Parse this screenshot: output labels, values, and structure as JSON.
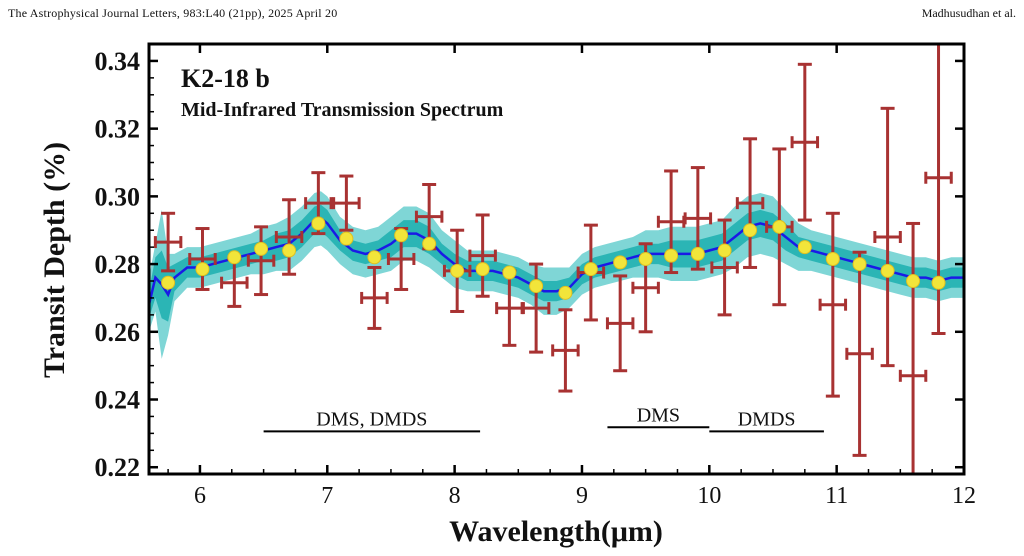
{
  "header": {
    "journal": "The Astrophysical Journal Letters, 983:L40 (21pp), 2025 April 20",
    "authors": "Madhusudhan et al."
  },
  "colors": {
    "model_line": "#1a1ae6",
    "band_outer": "#7fd6d6",
    "band_inner": "#2bb5b5",
    "data_points": "#a83232",
    "binned_points": "#f2e53a"
  },
  "chart_data": {
    "type": "scatter",
    "title": "K2-18 b",
    "subtitle": "Mid-Infrared Transmission Spectrum",
    "xlabel": "Wavelength(μm)",
    "ylabel": "Transit Depth (%)",
    "xlim": [
      5.6,
      12.0
    ],
    "ylim": [
      0.218,
      0.345
    ],
    "xticks": [
      "6",
      "7",
      "8",
      "9",
      "10",
      "11",
      "12"
    ],
    "yticks": [
      "0.22",
      "0.24",
      "0.26",
      "0.28",
      "0.30",
      "0.32",
      "0.34"
    ],
    "grid": false,
    "annotations": [
      {
        "label": "DMS, DMDS",
        "x_start": 6.5,
        "x_end": 8.2,
        "y": 0.2306
      },
      {
        "label": "DMS",
        "x_start": 9.2,
        "x_end": 10.0,
        "y": 0.2318
      },
      {
        "label": "DMDS",
        "x_start": 10.0,
        "x_end": 10.9,
        "y": 0.2306
      }
    ],
    "series": [
      {
        "type": "errorbar",
        "x": [
          5.75,
          6.02,
          6.27,
          6.48,
          6.7,
          6.93,
          7.15,
          7.37,
          7.58,
          7.8,
          8.02,
          8.22,
          8.43,
          8.64,
          8.87,
          9.07,
          9.3,
          9.5,
          9.7,
          9.91,
          10.12,
          10.32,
          10.55,
          10.75,
          10.97,
          11.18,
          11.4,
          11.6,
          11.8
        ],
        "y": [
          0.2865,
          0.2815,
          0.2745,
          0.281,
          0.288,
          0.298,
          0.298,
          0.27,
          0.2815,
          0.294,
          0.278,
          0.2825,
          0.267,
          0.267,
          0.2545,
          0.2775,
          0.2625,
          0.273,
          0.2925,
          0.2935,
          0.279,
          0.298,
          0.291,
          0.316,
          0.268,
          0.2535,
          0.288,
          0.247,
          0.3055
        ],
        "yerr": [
          0.0085,
          0.009,
          0.007,
          0.01,
          0.011,
          0.009,
          0.008,
          0.009,
          0.009,
          0.0095,
          0.012,
          0.012,
          0.011,
          0.013,
          0.012,
          0.014,
          0.014,
          0.013,
          0.015,
          0.015,
          0.014,
          0.019,
          0.023,
          0.023,
          0.027,
          0.03,
          0.038,
          0.045,
          0.046
        ],
        "xerr": [
          0.1,
          0.1,
          0.1,
          0.1,
          0.1,
          0.1,
          0.1,
          0.1,
          0.1,
          0.1,
          0.1,
          0.1,
          0.1,
          0.1,
          0.1,
          0.1,
          0.1,
          0.1,
          0.1,
          0.1,
          0.1,
          0.1,
          0.1,
          0.1,
          0.1,
          0.1,
          0.1,
          0.1,
          0.1
        ]
      },
      {
        "type": "binned",
        "x": [
          5.75,
          6.02,
          6.27,
          6.48,
          6.7,
          6.93,
          7.15,
          7.37,
          7.58,
          7.8,
          8.02,
          8.22,
          8.43,
          8.64,
          8.87,
          9.07,
          9.3,
          9.5,
          9.7,
          9.91,
          10.12,
          10.32,
          10.55,
          10.75,
          10.97,
          11.18,
          11.4,
          11.6,
          11.8
        ],
        "y": [
          0.2745,
          0.2785,
          0.282,
          0.2845,
          0.284,
          0.292,
          0.2875,
          0.282,
          0.2885,
          0.286,
          0.278,
          0.2785,
          0.2775,
          0.2735,
          0.2715,
          0.2785,
          0.2805,
          0.2815,
          0.2825,
          0.283,
          0.284,
          0.29,
          0.291,
          0.285,
          0.2815,
          0.28,
          0.278,
          0.275,
          0.2745
        ]
      },
      {
        "type": "model",
        "x": [
          5.6,
          5.65,
          5.7,
          5.75,
          5.8,
          5.9,
          6.0,
          6.1,
          6.2,
          6.3,
          6.4,
          6.5,
          6.6,
          6.7,
          6.8,
          6.9,
          6.95,
          7.0,
          7.1,
          7.2,
          7.3,
          7.4,
          7.5,
          7.6,
          7.7,
          7.8,
          7.9,
          8.0,
          8.1,
          8.2,
          8.3,
          8.4,
          8.5,
          8.6,
          8.7,
          8.8,
          8.9,
          9.0,
          9.1,
          9.2,
          9.3,
          9.4,
          9.5,
          9.6,
          9.7,
          9.8,
          9.9,
          10.0,
          10.1,
          10.2,
          10.3,
          10.4,
          10.5,
          10.6,
          10.7,
          10.8,
          10.9,
          11.0,
          11.1,
          11.2,
          11.3,
          11.4,
          11.5,
          11.6,
          11.7,
          11.8,
          11.9,
          12.0
        ],
        "y": [
          0.268,
          0.276,
          0.274,
          0.271,
          0.276,
          0.279,
          0.279,
          0.28,
          0.281,
          0.282,
          0.283,
          0.284,
          0.285,
          0.286,
          0.289,
          0.293,
          0.2935,
          0.292,
          0.287,
          0.284,
          0.283,
          0.284,
          0.286,
          0.289,
          0.289,
          0.287,
          0.283,
          0.28,
          0.278,
          0.278,
          0.278,
          0.277,
          0.276,
          0.274,
          0.272,
          0.272,
          0.273,
          0.277,
          0.279,
          0.28,
          0.281,
          0.282,
          0.283,
          0.283,
          0.283,
          0.283,
          0.283,
          0.284,
          0.285,
          0.288,
          0.291,
          0.292,
          0.291,
          0.288,
          0.285,
          0.284,
          0.283,
          0.282,
          0.281,
          0.28,
          0.279,
          0.278,
          0.277,
          0.276,
          0.276,
          0.275,
          0.276,
          0.276
        ],
        "sigma1": [
          0.004,
          0.006,
          0.01,
          0.008,
          0.004,
          0.003,
          0.003,
          0.003,
          0.003,
          0.003,
          0.003,
          0.003,
          0.004,
          0.004,
          0.004,
          0.004,
          0.004,
          0.004,
          0.003,
          0.003,
          0.003,
          0.003,
          0.004,
          0.004,
          0.004,
          0.004,
          0.003,
          0.003,
          0.003,
          0.003,
          0.003,
          0.003,
          0.003,
          0.003,
          0.003,
          0.003,
          0.003,
          0.003,
          0.003,
          0.003,
          0.003,
          0.003,
          0.003,
          0.003,
          0.004,
          0.004,
          0.004,
          0.004,
          0.004,
          0.004,
          0.004,
          0.004,
          0.004,
          0.004,
          0.003,
          0.003,
          0.003,
          0.003,
          0.003,
          0.003,
          0.003,
          0.003,
          0.003,
          0.003,
          0.003,
          0.003,
          0.003,
          0.003
        ],
        "sigma2": [
          0.008,
          0.01,
          0.022,
          0.012,
          0.007,
          0.006,
          0.006,
          0.006,
          0.006,
          0.006,
          0.006,
          0.007,
          0.007,
          0.008,
          0.008,
          0.008,
          0.008,
          0.008,
          0.007,
          0.007,
          0.007,
          0.007,
          0.008,
          0.008,
          0.008,
          0.008,
          0.007,
          0.007,
          0.006,
          0.006,
          0.006,
          0.006,
          0.006,
          0.006,
          0.007,
          0.007,
          0.006,
          0.006,
          0.006,
          0.006,
          0.006,
          0.006,
          0.007,
          0.007,
          0.008,
          0.008,
          0.008,
          0.008,
          0.008,
          0.009,
          0.009,
          0.009,
          0.009,
          0.008,
          0.007,
          0.006,
          0.006,
          0.006,
          0.006,
          0.006,
          0.006,
          0.006,
          0.006,
          0.006,
          0.006,
          0.006,
          0.006,
          0.006
        ]
      }
    ]
  }
}
